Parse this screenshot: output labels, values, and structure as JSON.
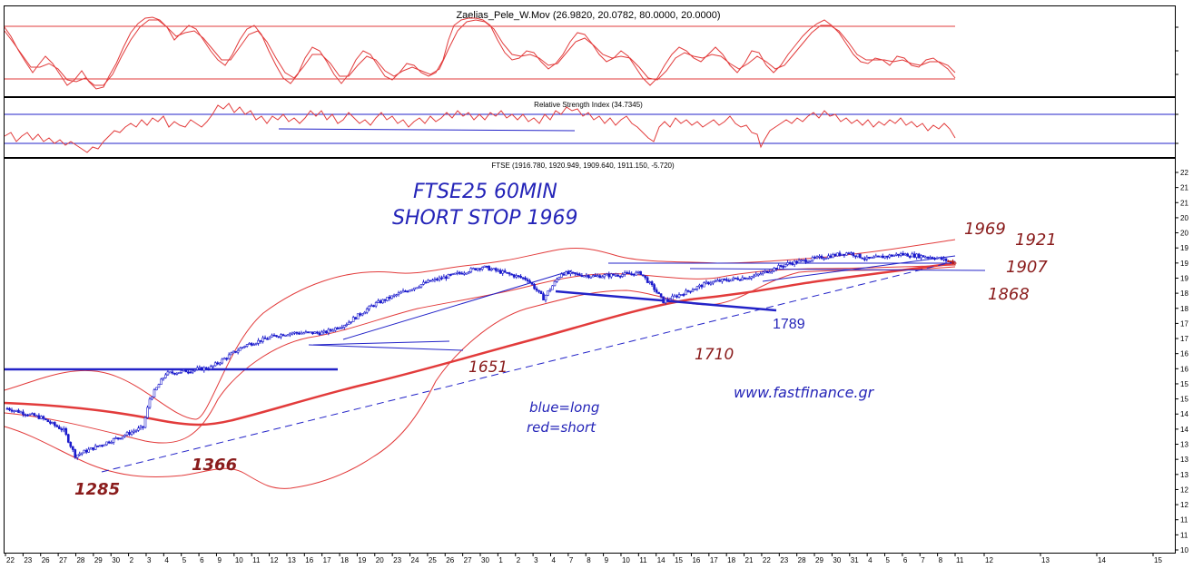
{
  "colors": {
    "price_bars": "#1a1acc",
    "red_lines": "#e23b3b",
    "dark_red": "#b41818",
    "blue_lines": "#2323c8",
    "note_blue": "#2424b8",
    "note_red": "#8a1c1c",
    "axis": "#000000"
  },
  "panels": {
    "stochastic": {
      "title": "Zaelias_Pele_W.Mov (26.9820, 20.0782, 80.0000, 20.0000)"
    },
    "rsi": {
      "title": "Relative Strength Index (34.7345)"
    },
    "price": {
      "title": "FTSE (1916.780, 1920.949, 1909.640, 1911.150, -5.720)"
    }
  },
  "annotations": {
    "title_line1": "FTSE25 60MIN",
    "title_line2": "SHORT STOP 1969",
    "legend_blue": "blue=long",
    "legend_red": "red=short",
    "website": "www.fastfinance.gr",
    "levels": {
      "l1969": "1969",
      "l1921": "1921",
      "l1907": "1907",
      "l1868": "1868",
      "l1789": "1789",
      "l1710": "1710",
      "l1651": "1651",
      "l1366": "1366",
      "l1285": "1285"
    }
  },
  "chart_data": {
    "type": "candlestick",
    "title": "FTSE (1916.780, 1920.949, 1909.640, 1911.150, -5.720)",
    "last_bar": {
      "open": 1916.78,
      "high": 1920.949,
      "low": 1909.64,
      "close": 1911.15,
      "change": -5.72
    },
    "y_tick_labels": [
      "22",
      "21",
      "21",
      "20",
      "20",
      "19",
      "19",
      "19",
      "18",
      "18",
      "17",
      "17",
      "16",
      "16",
      "15",
      "15",
      "14",
      "14",
      "13",
      "13",
      "13",
      "12",
      "12",
      "11",
      "11",
      "10"
    ],
    "x_tick_labels": [
      "22",
      "23",
      "26",
      "27",
      "28",
      "29",
      "30",
      "2",
      "3",
      "4",
      "5",
      "6",
      "9",
      "10",
      "11",
      "12",
      "13",
      "16",
      "17",
      "18",
      "19",
      "20",
      "23",
      "24",
      "25",
      "26",
      "27",
      "30",
      "1",
      "2",
      "3",
      "4",
      "7",
      "8",
      "9",
      "10",
      "11",
      "14",
      "15",
      "16",
      "17",
      "18",
      "21",
      "22",
      "23",
      "28",
      "29",
      "30",
      "31",
      "4",
      "5",
      "6",
      "7",
      "8",
      "11",
      "12",
      "13",
      "14",
      "15"
    ],
    "key_levels": [
      1969,
      1921,
      1907,
      1868,
      1789,
      1710,
      1651,
      1366,
      1285
    ],
    "series": [
      {
        "name": "FTSE",
        "approx_close_path": [
          [
            0,
            1450
          ],
          [
            15,
            1420
          ],
          [
            25,
            1380
          ],
          [
            30,
            1300
          ],
          [
            40,
            1330
          ],
          [
            50,
            1360
          ],
          [
            60,
            1390
          ],
          [
            63,
            1480
          ],
          [
            70,
            1560
          ],
          [
            80,
            1570
          ],
          [
            90,
            1580
          ],
          [
            105,
            1650
          ],
          [
            118,
            1680
          ],
          [
            125,
            1690
          ],
          [
            140,
            1690
          ],
          [
            150,
            1720
          ],
          [
            162,
            1780
          ],
          [
            175,
            1820
          ],
          [
            185,
            1850
          ],
          [
            195,
            1870
          ],
          [
            210,
            1900
          ],
          [
            220,
            1880
          ],
          [
            230,
            1860
          ],
          [
            237,
            1800
          ],
          [
            245,
            1880
          ],
          [
            260,
            1870
          ],
          [
            280,
            1880
          ],
          [
            286,
            1830
          ],
          [
            290,
            1790
          ],
          [
            310,
            1850
          ],
          [
            330,
            1870
          ],
          [
            345,
            1910
          ],
          [
            360,
            1930
          ],
          [
            372,
            1945
          ],
          [
            380,
            1925
          ],
          [
            395,
            1940
          ],
          [
            410,
            1930
          ],
          [
            420,
            1911
          ]
        ]
      }
    ]
  }
}
